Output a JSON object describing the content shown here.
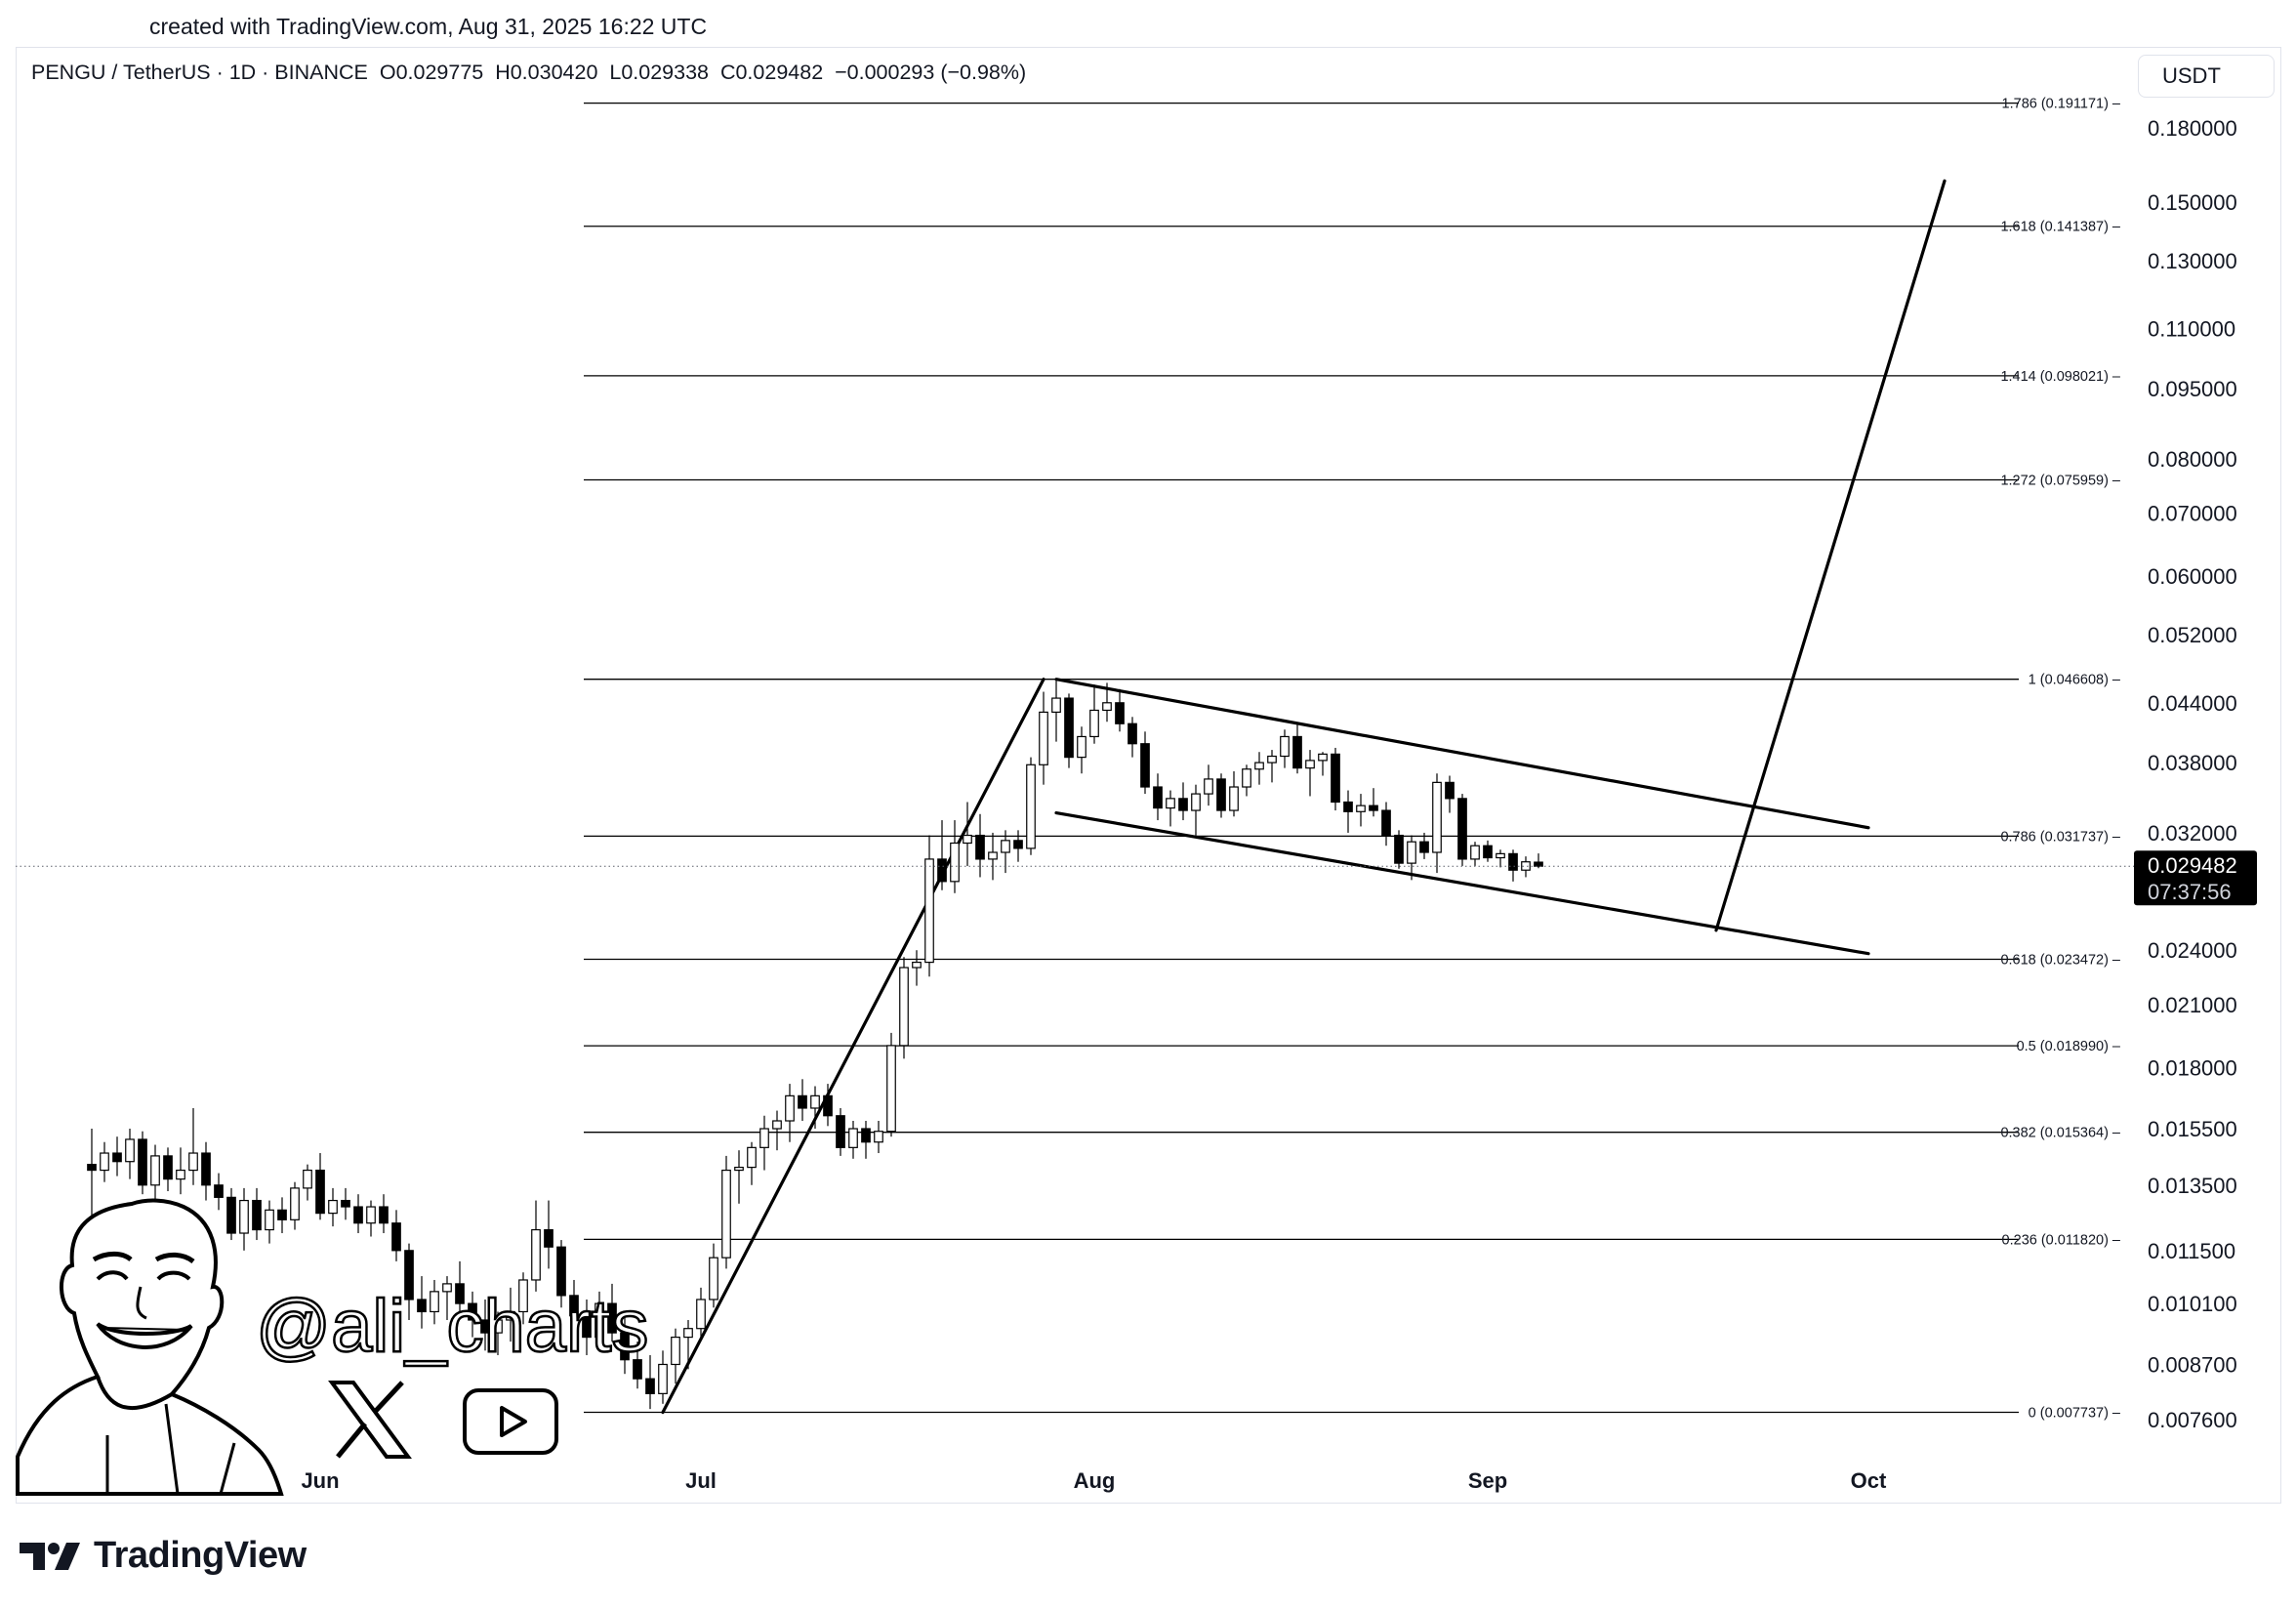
{
  "header": {
    "created_note": "created with TradingView.com, Aug 31, 2025 16:22 UTC"
  },
  "legend": {
    "symbol": "PENGU / TetherUS · 1D · BINANCE",
    "open": "O0.029775",
    "high": "H0.030420",
    "low": "L0.029338",
    "close": "C0.029482",
    "change": "−0.000293 (−0.98%)"
  },
  "currency": "USDT",
  "last_price": {
    "price": "0.029482",
    "countdown": "07:37:56",
    "value": 0.029482
  },
  "watermark": {
    "handle": "@ali_charts",
    "icons": [
      "x-logo-icon",
      "youtube-play-icon"
    ]
  },
  "brand": {
    "name": "TradingView"
  },
  "colors": {
    "up_candle": "#ffffff",
    "down_candle": "#000000",
    "wick": "#000000",
    "price_tag_bg": "#000000",
    "grid_text": "#131722"
  },
  "chart_data": {
    "type": "candlestick",
    "scale": "log",
    "symbol": "PENGU / TetherUS",
    "interval": "1D",
    "exchange": "BINANCE",
    "y_ticks": [
      "0.180000",
      "0.150000",
      "0.130000",
      "0.110000",
      "0.095000",
      "0.080000",
      "0.070000",
      "0.060000",
      "0.052000",
      "0.044000",
      "0.038000",
      "0.032000",
      "0.024000",
      "0.021000",
      "0.018000",
      "0.015500",
      "0.013500",
      "0.011500",
      "0.010100",
      "0.008700",
      "0.007600"
    ],
    "x_ticks": [
      "Jun",
      "Jul",
      "Aug",
      "Sep",
      "Oct"
    ],
    "fib_levels": [
      {
        "ratio": 1.786,
        "price": 0.191171,
        "label": "1.786 (0.191171)"
      },
      {
        "ratio": 1.618,
        "price": 0.141387,
        "label": "1.618 (0.141387)"
      },
      {
        "ratio": 1.414,
        "price": 0.098021,
        "label": "1.414 (0.098021)"
      },
      {
        "ratio": 1.272,
        "price": 0.075959,
        "label": "1.272 (0.075959)"
      },
      {
        "ratio": 1,
        "price": 0.046608,
        "label": "1 (0.046608)"
      },
      {
        "ratio": 0.786,
        "price": 0.031737,
        "label": "0.786 (0.031737)"
      },
      {
        "ratio": 0.618,
        "price": 0.023472,
        "label": "0.618 (0.023472)"
      },
      {
        "ratio": 0.5,
        "price": 0.01899,
        "label": "0.5 (0.018990)"
      },
      {
        "ratio": 0.382,
        "price": 0.015364,
        "label": "0.382 (0.015364)"
      },
      {
        "ratio": 0.236,
        "price": 0.01182,
        "label": "0.236 (0.011820)"
      },
      {
        "ratio": 0,
        "price": 0.007737,
        "label": "0 (0.007737)"
      }
    ],
    "candles": [
      {
        "date": "2025-05-14",
        "o": 0.0142,
        "h": 0.0155,
        "l": 0.0114,
        "c": 0.014
      },
      {
        "date": "2025-05-15",
        "o": 0.014,
        "h": 0.015,
        "l": 0.0136,
        "c": 0.0146
      },
      {
        "date": "2025-05-16",
        "o": 0.0146,
        "h": 0.0152,
        "l": 0.0138,
        "c": 0.0143
      },
      {
        "date": "2025-05-17",
        "o": 0.0143,
        "h": 0.0155,
        "l": 0.0137,
        "c": 0.0151
      },
      {
        "date": "2025-05-18",
        "o": 0.0151,
        "h": 0.0154,
        "l": 0.0132,
        "c": 0.0135
      },
      {
        "date": "2025-05-19",
        "o": 0.0135,
        "h": 0.0149,
        "l": 0.0128,
        "c": 0.0145
      },
      {
        "date": "2025-05-20",
        "o": 0.0145,
        "h": 0.0148,
        "l": 0.0133,
        "c": 0.0137
      },
      {
        "date": "2025-05-21",
        "o": 0.0137,
        "h": 0.0148,
        "l": 0.0132,
        "c": 0.014
      },
      {
        "date": "2025-05-22",
        "o": 0.014,
        "h": 0.0163,
        "l": 0.0135,
        "c": 0.0146
      },
      {
        "date": "2025-05-23",
        "o": 0.0146,
        "h": 0.015,
        "l": 0.013,
        "c": 0.0135
      },
      {
        "date": "2025-05-24",
        "o": 0.0135,
        "h": 0.0139,
        "l": 0.0127,
        "c": 0.0131
      },
      {
        "date": "2025-05-25",
        "o": 0.0131,
        "h": 0.0134,
        "l": 0.0118,
        "c": 0.012
      },
      {
        "date": "2025-05-26",
        "o": 0.012,
        "h": 0.0134,
        "l": 0.0115,
        "c": 0.013
      },
      {
        "date": "2025-05-27",
        "o": 0.013,
        "h": 0.0134,
        "l": 0.0118,
        "c": 0.0121
      },
      {
        "date": "2025-05-28",
        "o": 0.0121,
        "h": 0.013,
        "l": 0.0117,
        "c": 0.0127
      },
      {
        "date": "2025-05-29",
        "o": 0.0127,
        "h": 0.0131,
        "l": 0.012,
        "c": 0.0124
      },
      {
        "date": "2025-05-30",
        "o": 0.0124,
        "h": 0.0136,
        "l": 0.0121,
        "c": 0.0134
      },
      {
        "date": "2025-05-31",
        "o": 0.0134,
        "h": 0.0142,
        "l": 0.013,
        "c": 0.014
      },
      {
        "date": "2025-06-01",
        "o": 0.014,
        "h": 0.0146,
        "l": 0.0124,
        "c": 0.0126
      },
      {
        "date": "2025-06-02",
        "o": 0.0126,
        "h": 0.0134,
        "l": 0.0122,
        "c": 0.013
      },
      {
        "date": "2025-06-03",
        "o": 0.013,
        "h": 0.0134,
        "l": 0.0124,
        "c": 0.0128
      },
      {
        "date": "2025-06-04",
        "o": 0.0128,
        "h": 0.0132,
        "l": 0.012,
        "c": 0.0123
      },
      {
        "date": "2025-06-05",
        "o": 0.0123,
        "h": 0.013,
        "l": 0.0119,
        "c": 0.0128
      },
      {
        "date": "2025-06-06",
        "o": 0.0128,
        "h": 0.0132,
        "l": 0.012,
        "c": 0.0123
      },
      {
        "date": "2025-06-07",
        "o": 0.0123,
        "h": 0.0127,
        "l": 0.0112,
        "c": 0.0115
      },
      {
        "date": "2025-06-08",
        "o": 0.0115,
        "h": 0.0117,
        "l": 0.0097,
        "c": 0.0102
      },
      {
        "date": "2025-06-09",
        "o": 0.0102,
        "h": 0.0108,
        "l": 0.0095,
        "c": 0.0099
      },
      {
        "date": "2025-06-10",
        "o": 0.0099,
        "h": 0.0107,
        "l": 0.0096,
        "c": 0.0104
      },
      {
        "date": "2025-06-11",
        "o": 0.0104,
        "h": 0.0108,
        "l": 0.0097,
        "c": 0.0106
      },
      {
        "date": "2025-06-12",
        "o": 0.0106,
        "h": 0.0112,
        "l": 0.0098,
        "c": 0.0101
      },
      {
        "date": "2025-06-13",
        "o": 0.0101,
        "h": 0.0104,
        "l": 0.0093,
        "c": 0.0097
      },
      {
        "date": "2025-06-14",
        "o": 0.0097,
        "h": 0.0102,
        "l": 0.009,
        "c": 0.0094
      },
      {
        "date": "2025-06-15",
        "o": 0.0094,
        "h": 0.0099,
        "l": 0.0089,
        "c": 0.0097
      },
      {
        "date": "2025-06-16",
        "o": 0.0097,
        "h": 0.0105,
        "l": 0.0092,
        "c": 0.0099
      },
      {
        "date": "2025-06-17",
        "o": 0.0099,
        "h": 0.0109,
        "l": 0.0096,
        "c": 0.0107
      },
      {
        "date": "2025-06-18",
        "o": 0.0107,
        "h": 0.013,
        "l": 0.0104,
        "c": 0.0121
      },
      {
        "date": "2025-06-19",
        "o": 0.0121,
        "h": 0.013,
        "l": 0.011,
        "c": 0.0116
      },
      {
        "date": "2025-06-20",
        "o": 0.0116,
        "h": 0.0118,
        "l": 0.01,
        "c": 0.0103
      },
      {
        "date": "2025-06-21",
        "o": 0.0103,
        "h": 0.0107,
        "l": 0.0095,
        "c": 0.0098
      },
      {
        "date": "2025-06-22",
        "o": 0.0098,
        "h": 0.0102,
        "l": 0.0089,
        "c": 0.0093
      },
      {
        "date": "2025-06-23",
        "o": 0.0093,
        "h": 0.0104,
        "l": 0.009,
        "c": 0.0101
      },
      {
        "date": "2025-06-24",
        "o": 0.0101,
        "h": 0.0106,
        "l": 0.0092,
        "c": 0.0094
      },
      {
        "date": "2025-06-25",
        "o": 0.0094,
        "h": 0.0098,
        "l": 0.0085,
        "c": 0.0088
      },
      {
        "date": "2025-06-26",
        "o": 0.0088,
        "h": 0.0092,
        "l": 0.0082,
        "c": 0.0084
      },
      {
        "date": "2025-06-27",
        "o": 0.0084,
        "h": 0.0089,
        "l": 0.0078,
        "c": 0.0081
      },
      {
        "date": "2025-06-28",
        "o": 0.0081,
        "h": 0.009,
        "l": 0.0079,
        "c": 0.0087
      },
      {
        "date": "2025-06-29",
        "o": 0.0087,
        "h": 0.0095,
        "l": 0.0083,
        "c": 0.0093
      },
      {
        "date": "2025-06-30",
        "o": 0.0093,
        "h": 0.0097,
        "l": 0.0086,
        "c": 0.0095
      },
      {
        "date": "2025-07-01",
        "o": 0.0095,
        "h": 0.0105,
        "l": 0.0093,
        "c": 0.0102
      },
      {
        "date": "2025-07-02",
        "o": 0.0102,
        "h": 0.0117,
        "l": 0.01,
        "c": 0.0113
      },
      {
        "date": "2025-07-03",
        "o": 0.0113,
        "h": 0.0145,
        "l": 0.011,
        "c": 0.014
      },
      {
        "date": "2025-07-04",
        "o": 0.014,
        "h": 0.0147,
        "l": 0.0129,
        "c": 0.0141
      },
      {
        "date": "2025-07-05",
        "o": 0.0141,
        "h": 0.015,
        "l": 0.0135,
        "c": 0.0148
      },
      {
        "date": "2025-07-06",
        "o": 0.0148,
        "h": 0.016,
        "l": 0.014,
        "c": 0.0155
      },
      {
        "date": "2025-07-07",
        "o": 0.0155,
        "h": 0.0162,
        "l": 0.0147,
        "c": 0.0158
      },
      {
        "date": "2025-07-08",
        "o": 0.0158,
        "h": 0.0173,
        "l": 0.015,
        "c": 0.0168
      },
      {
        "date": "2025-07-09",
        "o": 0.0168,
        "h": 0.0175,
        "l": 0.0158,
        "c": 0.0163
      },
      {
        "date": "2025-07-10",
        "o": 0.0163,
        "h": 0.0172,
        "l": 0.0155,
        "c": 0.0168
      },
      {
        "date": "2025-07-11",
        "o": 0.0168,
        "h": 0.0173,
        "l": 0.0156,
        "c": 0.016
      },
      {
        "date": "2025-07-12",
        "o": 0.016,
        "h": 0.0163,
        "l": 0.0145,
        "c": 0.0148
      },
      {
        "date": "2025-07-13",
        "o": 0.0148,
        "h": 0.0158,
        "l": 0.0144,
        "c": 0.0155
      },
      {
        "date": "2025-07-14",
        "o": 0.0155,
        "h": 0.0158,
        "l": 0.0144,
        "c": 0.015
      },
      {
        "date": "2025-07-15",
        "o": 0.015,
        "h": 0.0158,
        "l": 0.0146,
        "c": 0.0154
      },
      {
        "date": "2025-07-16",
        "o": 0.0154,
        "h": 0.0196,
        "l": 0.0152,
        "c": 0.019
      },
      {
        "date": "2025-07-17",
        "o": 0.019,
        "h": 0.0236,
        "l": 0.0184,
        "c": 0.023
      },
      {
        "date": "2025-07-18",
        "o": 0.023,
        "h": 0.024,
        "l": 0.022,
        "c": 0.0233
      },
      {
        "date": "2025-07-19",
        "o": 0.0233,
        "h": 0.0318,
        "l": 0.0225,
        "c": 0.03
      },
      {
        "date": "2025-07-20",
        "o": 0.03,
        "h": 0.033,
        "l": 0.0278,
        "c": 0.0284
      },
      {
        "date": "2025-07-21",
        "o": 0.0284,
        "h": 0.033,
        "l": 0.0276,
        "c": 0.0312
      },
      {
        "date": "2025-07-22",
        "o": 0.0312,
        "h": 0.0345,
        "l": 0.0295,
        "c": 0.0318
      },
      {
        "date": "2025-07-23",
        "o": 0.0318,
        "h": 0.0335,
        "l": 0.0287,
        "c": 0.03
      },
      {
        "date": "2025-07-24",
        "o": 0.03,
        "h": 0.032,
        "l": 0.0285,
        "c": 0.0305
      },
      {
        "date": "2025-07-25",
        "o": 0.0305,
        "h": 0.0322,
        "l": 0.029,
        "c": 0.0314
      },
      {
        "date": "2025-07-26",
        "o": 0.0314,
        "h": 0.0322,
        "l": 0.0298,
        "c": 0.0308
      },
      {
        "date": "2025-07-27",
        "o": 0.0308,
        "h": 0.0385,
        "l": 0.0303,
        "c": 0.0378
      },
      {
        "date": "2025-07-28",
        "o": 0.0378,
        "h": 0.0452,
        "l": 0.036,
        "c": 0.043
      },
      {
        "date": "2025-07-29",
        "o": 0.043,
        "h": 0.0466,
        "l": 0.04,
        "c": 0.0445
      },
      {
        "date": "2025-07-30",
        "o": 0.0445,
        "h": 0.045,
        "l": 0.0375,
        "c": 0.0385
      },
      {
        "date": "2025-07-31",
        "o": 0.0385,
        "h": 0.0415,
        "l": 0.037,
        "c": 0.0405
      },
      {
        "date": "2025-08-01",
        "o": 0.0405,
        "h": 0.046,
        "l": 0.0398,
        "c": 0.0432
      },
      {
        "date": "2025-08-02",
        "o": 0.0432,
        "h": 0.0462,
        "l": 0.042,
        "c": 0.044
      },
      {
        "date": "2025-08-03",
        "o": 0.044,
        "h": 0.0455,
        "l": 0.041,
        "c": 0.0418
      },
      {
        "date": "2025-08-04",
        "o": 0.0418,
        "h": 0.0425,
        "l": 0.0385,
        "c": 0.0398
      },
      {
        "date": "2025-08-05",
        "o": 0.0398,
        "h": 0.041,
        "l": 0.0352,
        "c": 0.0358
      },
      {
        "date": "2025-08-06",
        "o": 0.0358,
        "h": 0.037,
        "l": 0.033,
        "c": 0.034
      },
      {
        "date": "2025-08-07",
        "o": 0.034,
        "h": 0.0355,
        "l": 0.0325,
        "c": 0.0348
      },
      {
        "date": "2025-08-08",
        "o": 0.0348,
        "h": 0.0362,
        "l": 0.033,
        "c": 0.0338
      },
      {
        "date": "2025-08-09",
        "o": 0.0338,
        "h": 0.036,
        "l": 0.0318,
        "c": 0.0352
      },
      {
        "date": "2025-08-10",
        "o": 0.0352,
        "h": 0.0378,
        "l": 0.0342,
        "c": 0.0365
      },
      {
        "date": "2025-08-11",
        "o": 0.0365,
        "h": 0.037,
        "l": 0.0332,
        "c": 0.0338
      },
      {
        "date": "2025-08-12",
        "o": 0.0338,
        "h": 0.0372,
        "l": 0.0333,
        "c": 0.0358
      },
      {
        "date": "2025-08-13",
        "o": 0.0358,
        "h": 0.0378,
        "l": 0.035,
        "c": 0.0374
      },
      {
        "date": "2025-08-14",
        "o": 0.0374,
        "h": 0.039,
        "l": 0.036,
        "c": 0.038
      },
      {
        "date": "2025-08-15",
        "o": 0.038,
        "h": 0.0392,
        "l": 0.0362,
        "c": 0.0386
      },
      {
        "date": "2025-08-16",
        "o": 0.0386,
        "h": 0.0412,
        "l": 0.0375,
        "c": 0.0405
      },
      {
        "date": "2025-08-17",
        "o": 0.0405,
        "h": 0.0418,
        "l": 0.037,
        "c": 0.0375
      },
      {
        "date": "2025-08-18",
        "o": 0.0375,
        "h": 0.0392,
        "l": 0.035,
        "c": 0.0382
      },
      {
        "date": "2025-08-19",
        "o": 0.0382,
        "h": 0.039,
        "l": 0.0368,
        "c": 0.0388
      },
      {
        "date": "2025-08-20",
        "o": 0.0388,
        "h": 0.0394,
        "l": 0.0338,
        "c": 0.0345
      },
      {
        "date": "2025-08-21",
        "o": 0.0345,
        "h": 0.0355,
        "l": 0.032,
        "c": 0.0337
      },
      {
        "date": "2025-08-22",
        "o": 0.0337,
        "h": 0.0352,
        "l": 0.0325,
        "c": 0.0342
      },
      {
        "date": "2025-08-23",
        "o": 0.0342,
        "h": 0.0357,
        "l": 0.0333,
        "c": 0.0338
      },
      {
        "date": "2025-08-24",
        "o": 0.0338,
        "h": 0.0345,
        "l": 0.031,
        "c": 0.0318
      },
      {
        "date": "2025-08-25",
        "o": 0.0318,
        "h": 0.0322,
        "l": 0.0293,
        "c": 0.0297
      },
      {
        "date": "2025-08-26",
        "o": 0.0297,
        "h": 0.0318,
        "l": 0.0285,
        "c": 0.0313
      },
      {
        "date": "2025-08-27",
        "o": 0.0313,
        "h": 0.032,
        "l": 0.03,
        "c": 0.0305
      },
      {
        "date": "2025-08-28",
        "o": 0.0305,
        "h": 0.037,
        "l": 0.029,
        "c": 0.0362
      },
      {
        "date": "2025-08-29",
        "o": 0.0362,
        "h": 0.0368,
        "l": 0.0336,
        "c": 0.0348
      },
      {
        "date": "2025-08-30",
        "o": 0.0348,
        "h": 0.0352,
        "l": 0.0295,
        "c": 0.03
      },
      {
        "date": "2025-08-31",
        "o": 0.03,
        "h": 0.0313,
        "l": 0.0295,
        "c": 0.031
      },
      {
        "date": "2025-09-01",
        "o": 0.031,
        "h": 0.0314,
        "l": 0.0298,
        "c": 0.0301
      },
      {
        "date": "2025-09-02",
        "o": 0.0301,
        "h": 0.0307,
        "l": 0.0294,
        "c": 0.0304
      },
      {
        "date": "2025-09-03",
        "o": 0.0304,
        "h": 0.0307,
        "l": 0.0284,
        "c": 0.0292
      },
      {
        "date": "2025-09-04",
        "o": 0.0292,
        "h": 0.0302,
        "l": 0.0287,
        "c": 0.0298
      },
      {
        "date": "2025-09-05",
        "o": 0.029775,
        "h": 0.03042,
        "l": 0.029338,
        "c": 0.029482
      }
    ],
    "drawings": [
      {
        "name": "impulse-trendline",
        "points": [
          [
            "2025-06-28",
            0.007737
          ],
          [
            "2025-07-28",
            0.046608
          ]
        ]
      },
      {
        "name": "channel-upper-line",
        "points": [
          [
            "2025-07-29",
            0.046608
          ],
          [
            "2025-10-01",
            0.0324
          ]
        ]
      },
      {
        "name": "channel-lower-line",
        "points": [
          [
            "2025-07-29",
            0.0336
          ],
          [
            "2025-10-01",
            0.0238
          ]
        ]
      },
      {
        "name": "projection-line",
        "points": [
          [
            "2025-09-19",
            0.0252
          ],
          [
            "2025-10-07",
            0.158
          ]
        ]
      }
    ]
  }
}
